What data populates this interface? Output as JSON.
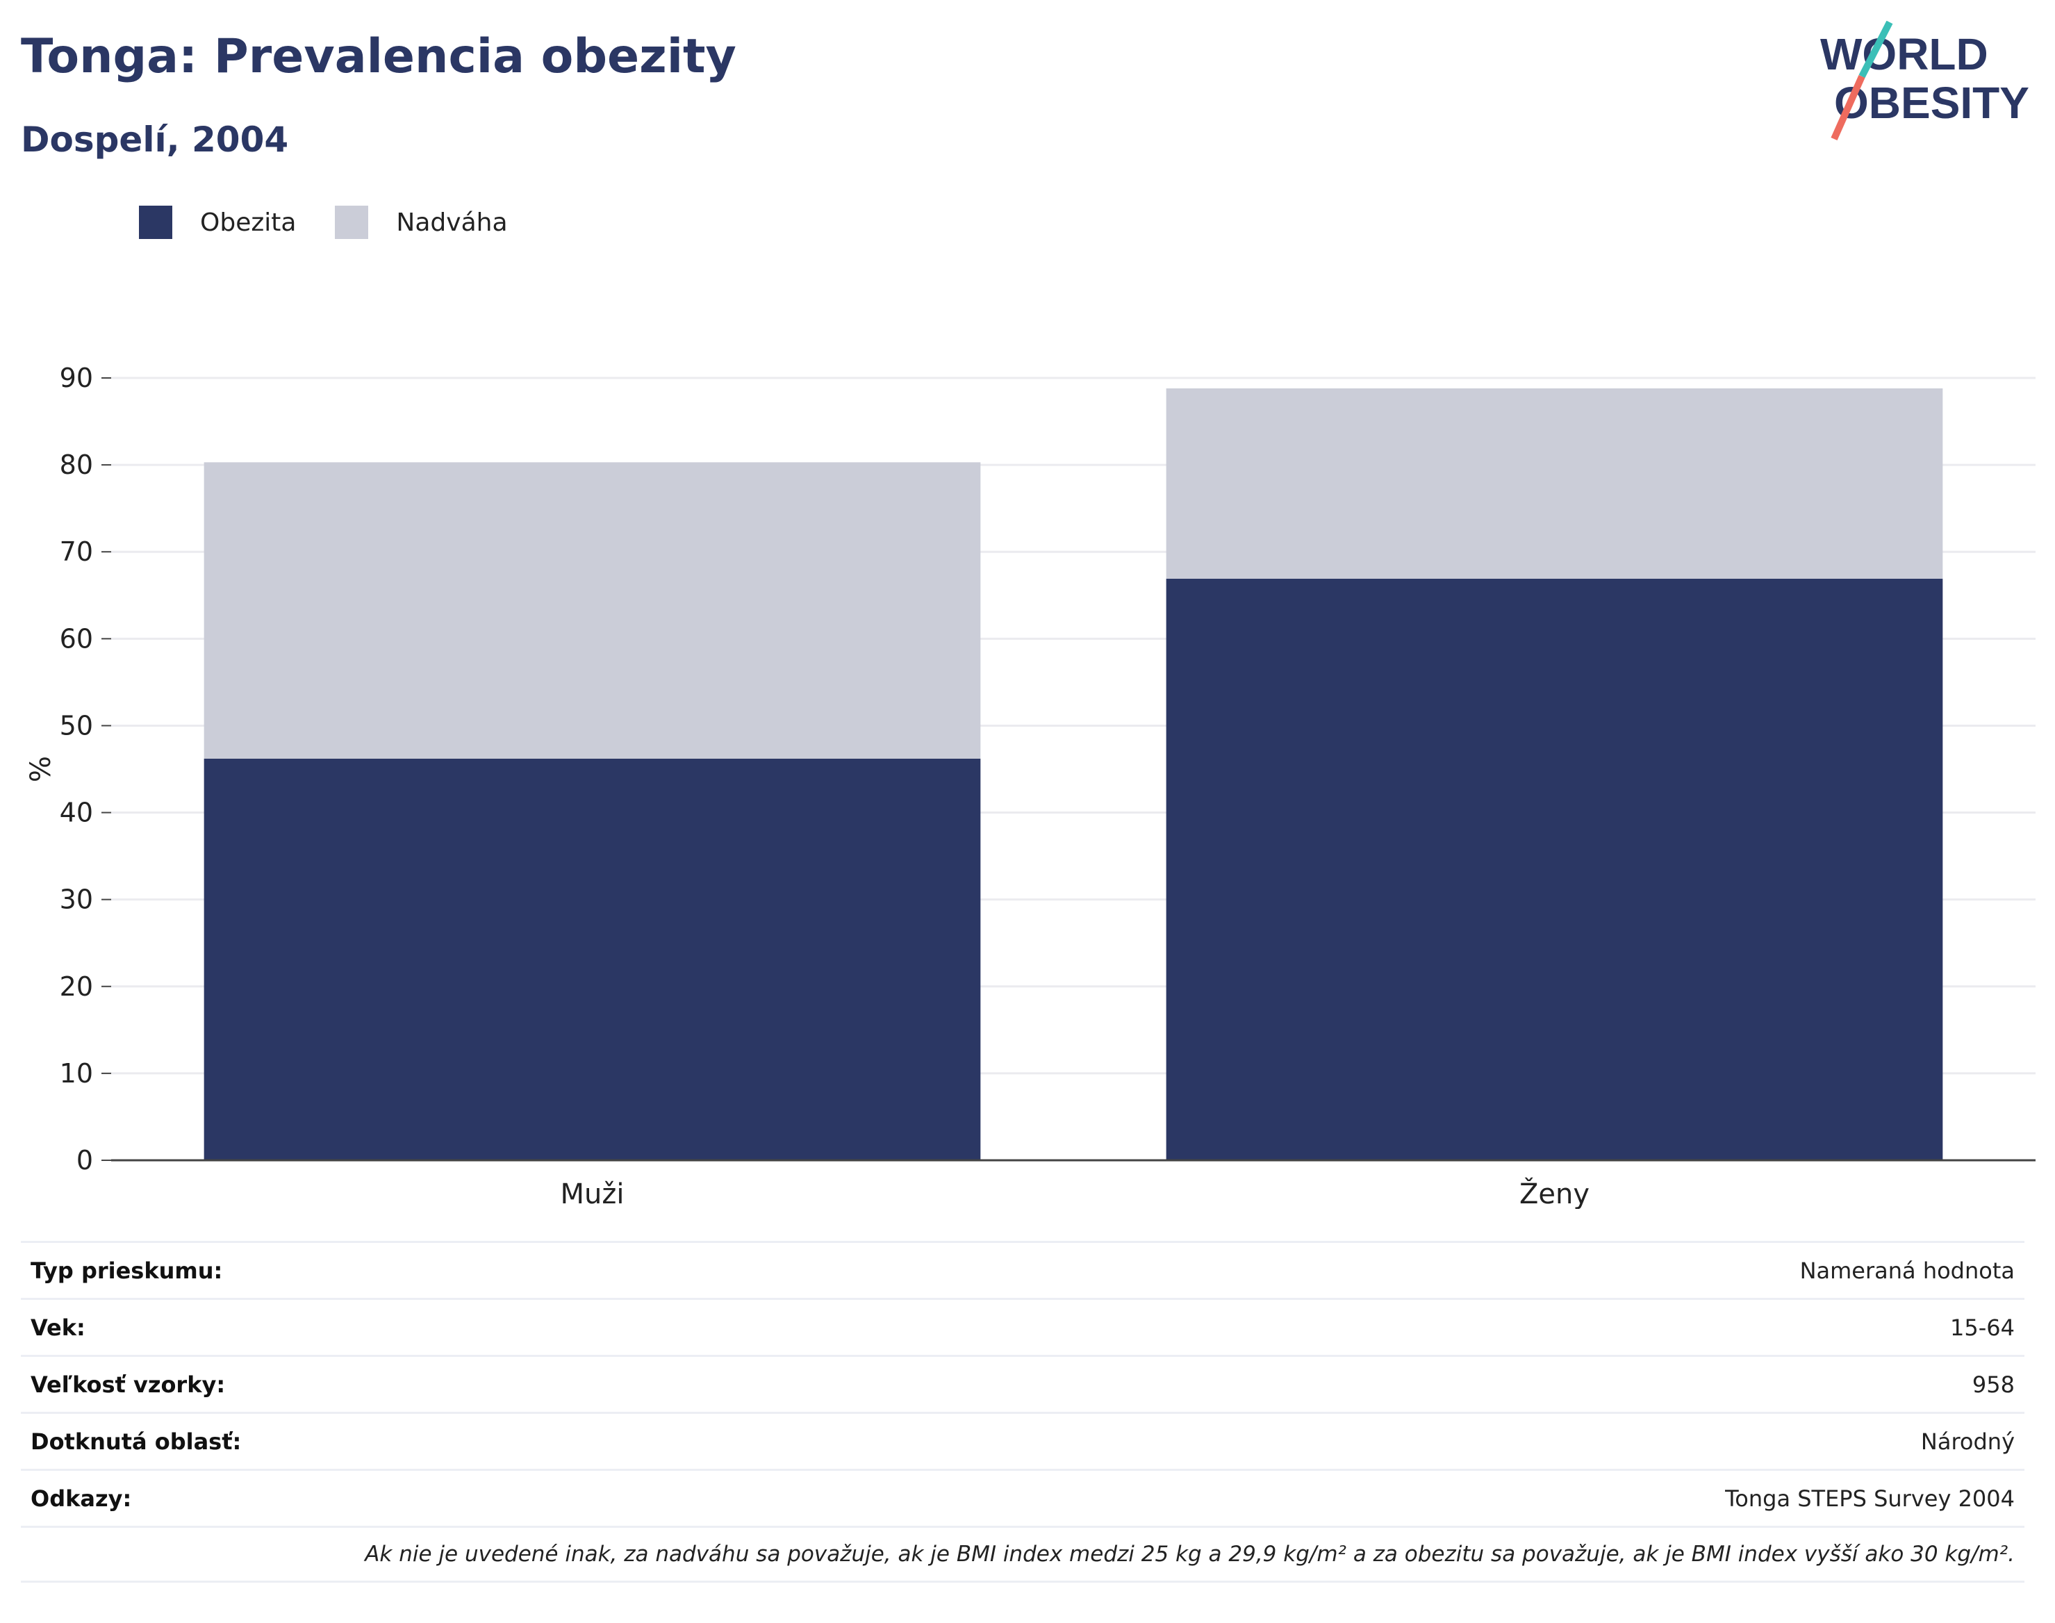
{
  "header": {
    "title": "Tonga: Prevalencia obezity",
    "subtitle": "Dospelí, 2004",
    "logo_text_top": "WORLD",
    "logo_text_bottom": "OBESITY"
  },
  "colors": {
    "obesity": "#2b3764",
    "overweight": "#cbcdd8",
    "title": "#2b3764",
    "logo_teal": "#3bbfb7",
    "logo_coral": "#ee6b5e"
  },
  "legend": [
    {
      "label": "Obezita",
      "color": "#2b3764"
    },
    {
      "label": "Nadváha",
      "color": "#cbcdd8"
    }
  ],
  "chart_data": {
    "type": "bar",
    "stacked": true,
    "categories": [
      "Muži",
      "Ženy"
    ],
    "series": [
      {
        "name": "Obezita",
        "values": [
          46.2,
          66.9
        ]
      },
      {
        "name": "Nadváha",
        "values": [
          34.1,
          21.9
        ]
      }
    ],
    "ylabel": "%",
    "xlabel": "",
    "ylim": [
      0,
      90
    ],
    "yticks": [
      0,
      10,
      20,
      30,
      40,
      50,
      60,
      70,
      80,
      90
    ],
    "grid": true,
    "legend_position": "top-left"
  },
  "info": {
    "rows": [
      {
        "key": "Typ prieskumu:",
        "value": "Nameraná hodnota"
      },
      {
        "key": "Vek:",
        "value": "15-64"
      },
      {
        "key": "Veľkosť vzorky:",
        "value": "958"
      },
      {
        "key": "Dotknutá oblasť:",
        "value": "Národný"
      },
      {
        "key": "Odkazy:",
        "value": "Tonga STEPS Survey 2004"
      }
    ],
    "note": "Ak nie je uvedené inak, za nadváhu sa považuje, ak je BMI index medzi 25 kg a 29,9 kg/m² a za obezitu sa považuje, ak je BMI index vyšší ako 30 kg/m²."
  }
}
